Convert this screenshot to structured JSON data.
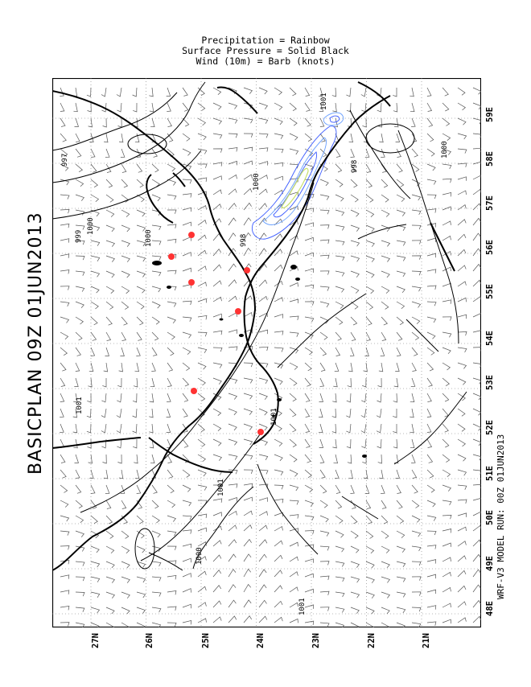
{
  "header": {
    "line1": "Precipitation = Rainbow",
    "line2": "Surface Pressure = Solid Black",
    "line3": "Wind (10m) = Barb (knots)"
  },
  "title": "BASICPLAN 09Z 01JUN2013",
  "model_run": "WRF-V3 MODEL RUN: 00Z 01JUN2013",
  "longitude_labels": [
    "59E",
    "58E",
    "57E",
    "56E",
    "55E",
    "54E",
    "53E",
    "52E",
    "51E",
    "50E",
    "49E",
    "48E"
  ],
  "latitude_labels": [
    "27N",
    "26N",
    "25N",
    "24N",
    "23N",
    "22N",
    "21N"
  ],
  "contour_labels": [
    "997",
    "999",
    "1000",
    "1000",
    "1000",
    "998",
    "998",
    "1001",
    "1000",
    "1001",
    "1001",
    "1001",
    "1000",
    "1001"
  ],
  "colors": {
    "pressure": "#000000",
    "precip": "#3b5bff",
    "precip_light": "#6aa0ff",
    "precip_core": "#c8e06a",
    "station": "#ff3333",
    "barb": "#444444"
  }
}
